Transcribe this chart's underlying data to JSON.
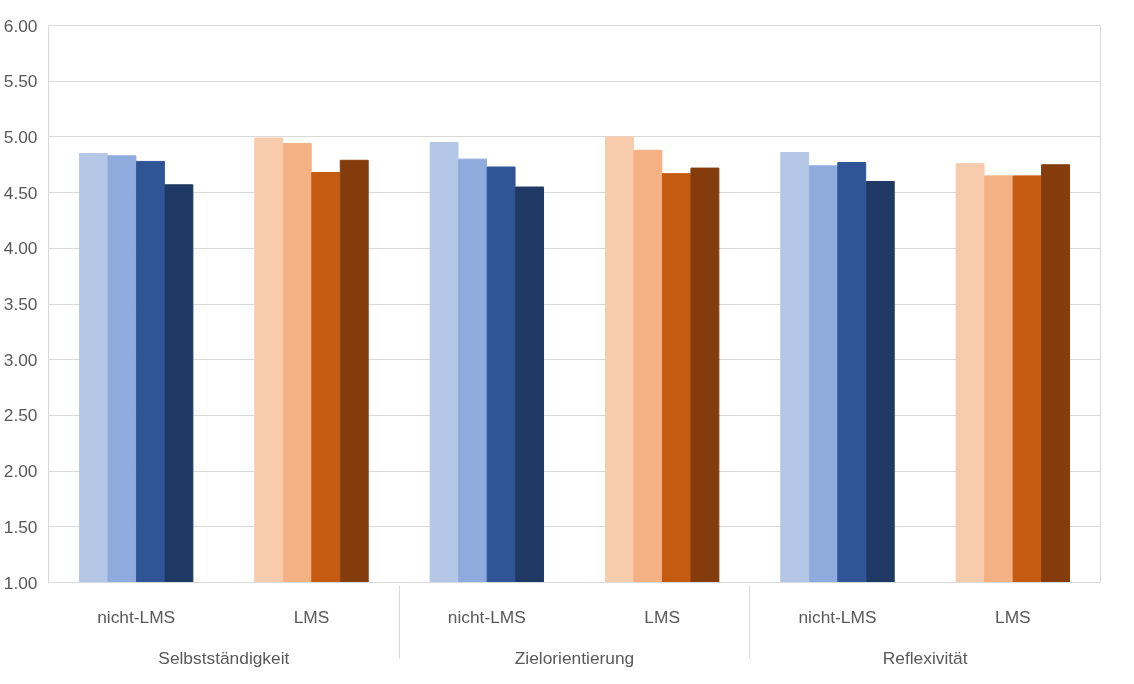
{
  "chart_data": {
    "type": "bar",
    "categories": [
      "nicht-LMS",
      "LMS",
      "nicht-LMS",
      "LMS",
      "nicht-LMS",
      "LMS"
    ],
    "annotations": [
      "Selbstständigkeit",
      "Zielorientierung",
      "Reflexivität"
    ],
    "series": [
      {
        "colors": [
          "#b4c7e7",
          "#f8cbad",
          "#b4c7e7",
          "#f8cbad",
          "#b4c7e7",
          "#f8cbad"
        ],
        "values": [
          4.85,
          4.99,
          4.95,
          5.0,
          4.86,
          4.76
        ]
      },
      {
        "colors": [
          "#8faadc",
          "#f4b183",
          "#8faadc",
          "#f4b183",
          "#8faadc",
          "#f4b183"
        ],
        "values": [
          4.83,
          4.94,
          4.8,
          4.88,
          4.74,
          4.65
        ]
      },
      {
        "colors": [
          "#2f5597",
          "#c55a11",
          "#2f5597",
          "#c55a11",
          "#2f5597",
          "#c55a11"
        ],
        "values": [
          4.78,
          4.68,
          4.73,
          4.67,
          4.77,
          4.65
        ]
      },
      {
        "colors": [
          "#1f3864",
          "#843c0c",
          "#1f3864",
          "#843c0c",
          "#1f3864",
          "#843c0c"
        ],
        "values": [
          4.57,
          4.79,
          4.55,
          4.72,
          4.6,
          4.75
        ]
      }
    ],
    "ylim": [
      1,
      6
    ],
    "yticks": [
      {
        "value": 1,
        "label": "1.00"
      },
      {
        "value": 1.5,
        "label": "1.50"
      },
      {
        "value": 2,
        "label": "2.00"
      },
      {
        "value": 2.5,
        "label": "2.50"
      },
      {
        "value": 3,
        "label": "3.00"
      },
      {
        "value": 3.5,
        "label": "3.50"
      },
      {
        "value": 4,
        "label": "4.00"
      },
      {
        "value": 4.5,
        "label": "4.50"
      },
      {
        "value": 5,
        "label": "5.00"
      },
      {
        "value": 5.5,
        "label": "5.50"
      },
      {
        "value": 6,
        "label": "6.00"
      }
    ],
    "grid": "y"
  }
}
